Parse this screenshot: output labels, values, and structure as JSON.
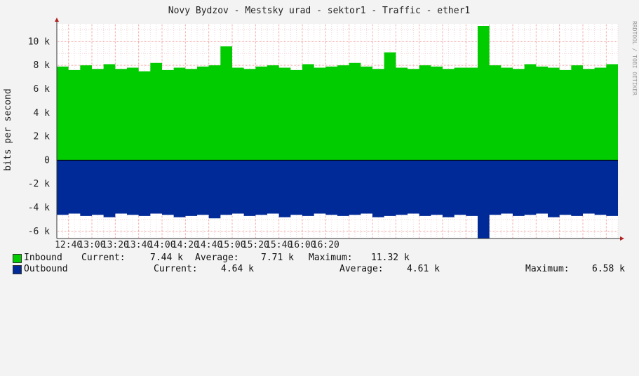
{
  "window": {
    "title": "Novy Bydzov - Mestsky urad - sektor1 - Traffic - ether1"
  },
  "watermark": "RRDTOOL / TOBI OETIKER",
  "chart_data": {
    "type": "area",
    "title": "Novy Bydzov - Mestsky urad - sektor1 - Traffic - ether1",
    "ylabel": "bits per second",
    "xlabel": "",
    "ylim": [
      -6600,
      11500
    ],
    "y_ticks": [
      {
        "value": 10000,
        "label": "10 k"
      },
      {
        "value": 8000,
        "label": "8 k"
      },
      {
        "value": 6000,
        "label": "6 k"
      },
      {
        "value": 4000,
        "label": "4 k"
      },
      {
        "value": 2000,
        "label": "2 k"
      },
      {
        "value": 0,
        "label": "0"
      },
      {
        "value": -2000,
        "label": "-2 k"
      },
      {
        "value": -4000,
        "label": "-4 k"
      },
      {
        "value": -6000,
        "label": "-6 k"
      }
    ],
    "x_ticks": [
      "12:40",
      "13:00",
      "13:20",
      "13:40",
      "14:00",
      "14:20",
      "14:40",
      "15:00",
      "15:20",
      "15:40",
      "16:00",
      "16:20"
    ],
    "x_start_minutes": 750,
    "x_end_minutes": 1230,
    "grid": true,
    "series": [
      {
        "name": "Inbound",
        "color": "#00cc00",
        "x_minutes": [
          750,
          760,
          770,
          780,
          790,
          800,
          810,
          820,
          830,
          840,
          850,
          860,
          870,
          880,
          890,
          900,
          910,
          920,
          930,
          940,
          950,
          960,
          970,
          980,
          990,
          1000,
          1010,
          1020,
          1030,
          1040,
          1050,
          1060,
          1070,
          1080,
          1090,
          1100,
          1110,
          1120,
          1130,
          1140,
          1150,
          1160,
          1170,
          1180,
          1190,
          1200,
          1210,
          1220,
          1230
        ],
        "values": [
          7900,
          7600,
          8000,
          7700,
          8100,
          7700,
          7800,
          7500,
          8200,
          7600,
          7800,
          7700,
          7900,
          8000,
          9600,
          7800,
          7700,
          7900,
          8000,
          7800,
          7600,
          8100,
          7800,
          7900,
          8000,
          8200,
          7900,
          7700,
          9100,
          7800,
          7700,
          8000,
          7900,
          7700,
          7800,
          7800,
          11320,
          8000,
          7800,
          7700,
          8100,
          7900,
          7800,
          7600,
          8000,
          7700,
          7800,
          8100,
          7440
        ]
      },
      {
        "name": "Outbound",
        "color": "#002a97",
        "x_minutes": [
          750,
          760,
          770,
          780,
          790,
          800,
          810,
          820,
          830,
          840,
          850,
          860,
          870,
          880,
          890,
          900,
          910,
          920,
          930,
          940,
          950,
          960,
          970,
          980,
          990,
          1000,
          1010,
          1020,
          1030,
          1040,
          1050,
          1060,
          1070,
          1080,
          1090,
          1100,
          1110,
          1120,
          1130,
          1140,
          1150,
          1160,
          1170,
          1180,
          1190,
          1200,
          1210,
          1220,
          1230
        ],
        "values": [
          -4600,
          -4500,
          -4700,
          -4600,
          -4800,
          -4500,
          -4600,
          -4700,
          -4500,
          -4600,
          -4800,
          -4700,
          -4600,
          -4900,
          -4600,
          -4500,
          -4700,
          -4600,
          -4500,
          -4800,
          -4600,
          -4700,
          -4500,
          -4600,
          -4700,
          -4600,
          -4500,
          -4800,
          -4700,
          -4600,
          -4500,
          -4700,
          -4600,
          -4800,
          -4600,
          -4700,
          -6580,
          -4600,
          -4500,
          -4700,
          -4600,
          -4500,
          -4800,
          -4600,
          -4700,
          -4500,
          -4600,
          -4700,
          -4640
        ]
      }
    ]
  },
  "legend": [
    {
      "name": "Inbound",
      "color": "#00cc00",
      "current_label": "Current:",
      "current": "7.44 k",
      "average_label": "Average:",
      "average": "7.71 k",
      "maximum_label": "Maximum:",
      "maximum": "11.32 k"
    },
    {
      "name": "Outbound",
      "color": "#002a97",
      "current_label": "Current:",
      "current": "4.64 k",
      "average_label": "Average:",
      "average": "4.61 k",
      "maximum_label": "Maximum:",
      "maximum": "6.58 k"
    }
  ]
}
